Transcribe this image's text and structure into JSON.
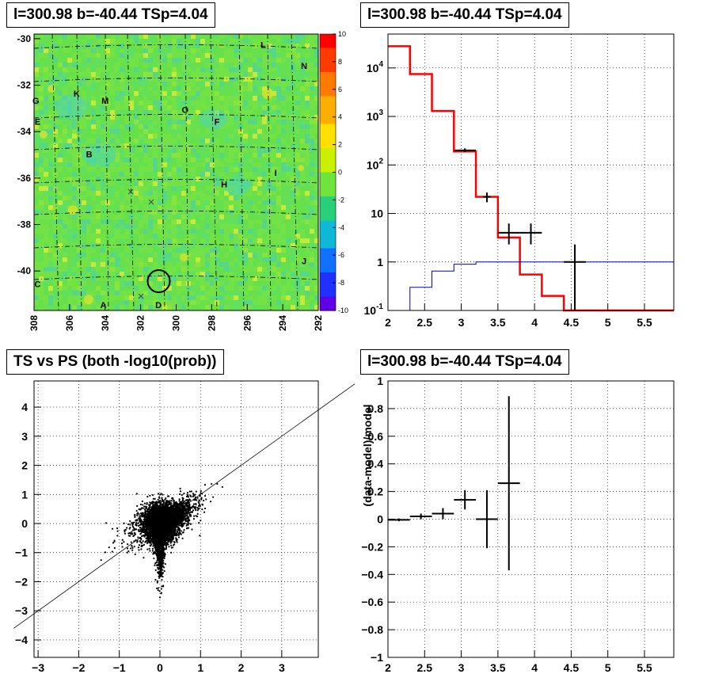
{
  "colors": {
    "frame": "#000000",
    "model": "#ff0000",
    "aux": "#0000cc",
    "data": "#000000",
    "grid": "#000000"
  },
  "chart_data": [
    {
      "type": "heatmap",
      "title": "l=300.98 b=-40.44 TSp=4.04",
      "xlim": [
        308,
        292
      ],
      "ylim": [
        -41.7,
        -29.8
      ],
      "x_ticks": [
        "308",
        "306",
        "304",
        "302",
        "300",
        "298",
        "296",
        "294",
        "292"
      ],
      "y_ticks": [
        "-30",
        "-32",
        "-34",
        "-36",
        "-38",
        "-40"
      ],
      "colorbar": {
        "range": [
          -10,
          10
        ],
        "ticks": [
          "10",
          "8",
          "6",
          "4",
          "2",
          "0",
          "-2",
          "-4",
          "-6",
          "-8",
          "-10"
        ]
      },
      "source_labels": [
        {
          "text": "L",
          "l": 295.1,
          "b": -30.3
        },
        {
          "text": "N",
          "l": 292.8,
          "b": -31.2
        },
        {
          "text": "K",
          "l": 305.6,
          "b": -32.4
        },
        {
          "text": "M",
          "l": 304.0,
          "b": -32.7
        },
        {
          "text": "G",
          "l": 307.9,
          "b": -32.7
        },
        {
          "text": "O",
          "l": 299.5,
          "b": -33.1
        },
        {
          "text": "E",
          "l": 307.8,
          "b": -33.6
        },
        {
          "text": "F",
          "l": 297.7,
          "b": -33.6
        },
        {
          "text": "B",
          "l": 304.9,
          "b": -35.0
        },
        {
          "text": "I",
          "l": 294.4,
          "b": -35.8
        },
        {
          "text": "H",
          "l": 297.3,
          "b": -36.3
        },
        {
          "text": "J",
          "l": 292.8,
          "b": -39.6
        },
        {
          "text": "C",
          "l": 307.8,
          "b": -40.6
        },
        {
          "text": "A",
          "l": 304.1,
          "b": -41.5
        },
        {
          "text": "D",
          "l": 301.0,
          "b": -41.5
        }
      ],
      "marked_source": {
        "l": 300.98,
        "b": -40.44
      }
    },
    {
      "type": "line",
      "title": "l=300.98 b=-40.44 TSp=4.04",
      "xlim": [
        2,
        5.9
      ],
      "ylim": [
        0.1,
        50000
      ],
      "yscale": "log",
      "x_ticks": [
        "2",
        "2.5",
        "3",
        "3.5",
        "4",
        "4.5",
        "5",
        "5.5"
      ],
      "y_ticks": [
        "10^{-1}",
        "1",
        "10",
        "10^{2}",
        "10^{3}",
        "10^{4}"
      ],
      "grid": true,
      "series": [
        {
          "style": "step",
          "color": "red",
          "edges": [
            2,
            2.3,
            2.6,
            2.9,
            3.2,
            3.5,
            3.8,
            4.1,
            4.4,
            4.7,
            5.9
          ],
          "values": [
            28000,
            7500,
            1300,
            190,
            22,
            3.2,
            0.55,
            0.2,
            0.1,
            0.1
          ]
        },
        {
          "style": "step",
          "color": "blue",
          "edges": [
            2,
            2.3,
            2.6,
            2.9,
            3.2,
            3.5,
            3.8,
            4.1,
            4.4,
            4.7,
            5.9
          ],
          "values": [
            0.1,
            0.3,
            0.65,
            0.9,
            1,
            1,
            1,
            1,
            1,
            1
          ]
        },
        {
          "style": "errorbar",
          "color": "black",
          "points": [
            {
              "x": 3.05,
              "y": 200,
              "xerr": 0.15,
              "ylo": 185,
              "yhi": 220
            },
            {
              "x": 3.35,
              "y": 22,
              "xerr": 0.05,
              "ylo": 17,
              "yhi": 27
            },
            {
              "x": 3.65,
              "y": 4,
              "xerr": 0.15,
              "ylo": 2.3,
              "yhi": 6.2
            },
            {
              "x": 3.95,
              "y": 4,
              "xerr": 0.15,
              "ylo": 2.3,
              "yhi": 6.2
            },
            {
              "x": 4.55,
              "y": 1,
              "xerr": 0.15,
              "ylo": 0.1,
              "yhi": 2.3
            }
          ]
        }
      ]
    },
    {
      "type": "scatter",
      "title": "TS vs PS (both -log10(prob))",
      "xlim": [
        -3.1,
        3.9
      ],
      "ylim": [
        -4.6,
        4.9
      ],
      "x_ticks": [
        "-3",
        "-2",
        "-1",
        "0",
        "1",
        "2",
        "3"
      ],
      "y_ticks": [
        "-4",
        "-3",
        "-2",
        "-1",
        "0",
        "1",
        "2",
        "3",
        "4"
      ],
      "grid": true,
      "reference_line": {
        "slope": 1,
        "intercept": 0
      },
      "point_count_estimate": 6000
    },
    {
      "type": "scatter",
      "title": "l=300.98 b=-40.44 TSp=4.04",
      "ylabel": "(data-model)/model",
      "xlim": [
        2,
        5.9
      ],
      "ylim": [
        -1,
        1
      ],
      "x_ticks": [
        "2",
        "2.5",
        "3",
        "3.5",
        "4",
        "4.5",
        "5",
        "5.5"
      ],
      "y_ticks": [
        "-1",
        "-0.8",
        "-0.6",
        "-0.4",
        "-0.2",
        "0",
        "0.2",
        "0.4",
        "0.6",
        "0.8",
        "1"
      ],
      "grid": true,
      "points": [
        {
          "x": 2.15,
          "y": -0.005,
          "xerr": 0.15,
          "yerr": 0.01
        },
        {
          "x": 2.45,
          "y": 0.02,
          "xerr": 0.15,
          "yerr": 0.02
        },
        {
          "x": 2.75,
          "y": 0.04,
          "xerr": 0.15,
          "yerr": 0.04
        },
        {
          "x": 3.05,
          "y": 0.14,
          "xerr": 0.15,
          "yerr": 0.07
        },
        {
          "x": 3.35,
          "y": 0.0,
          "xerr": 0.15,
          "yerr": 0.21
        },
        {
          "x": 3.65,
          "y": 0.26,
          "xerr": 0.15,
          "yerr": 0.63
        }
      ]
    }
  ]
}
